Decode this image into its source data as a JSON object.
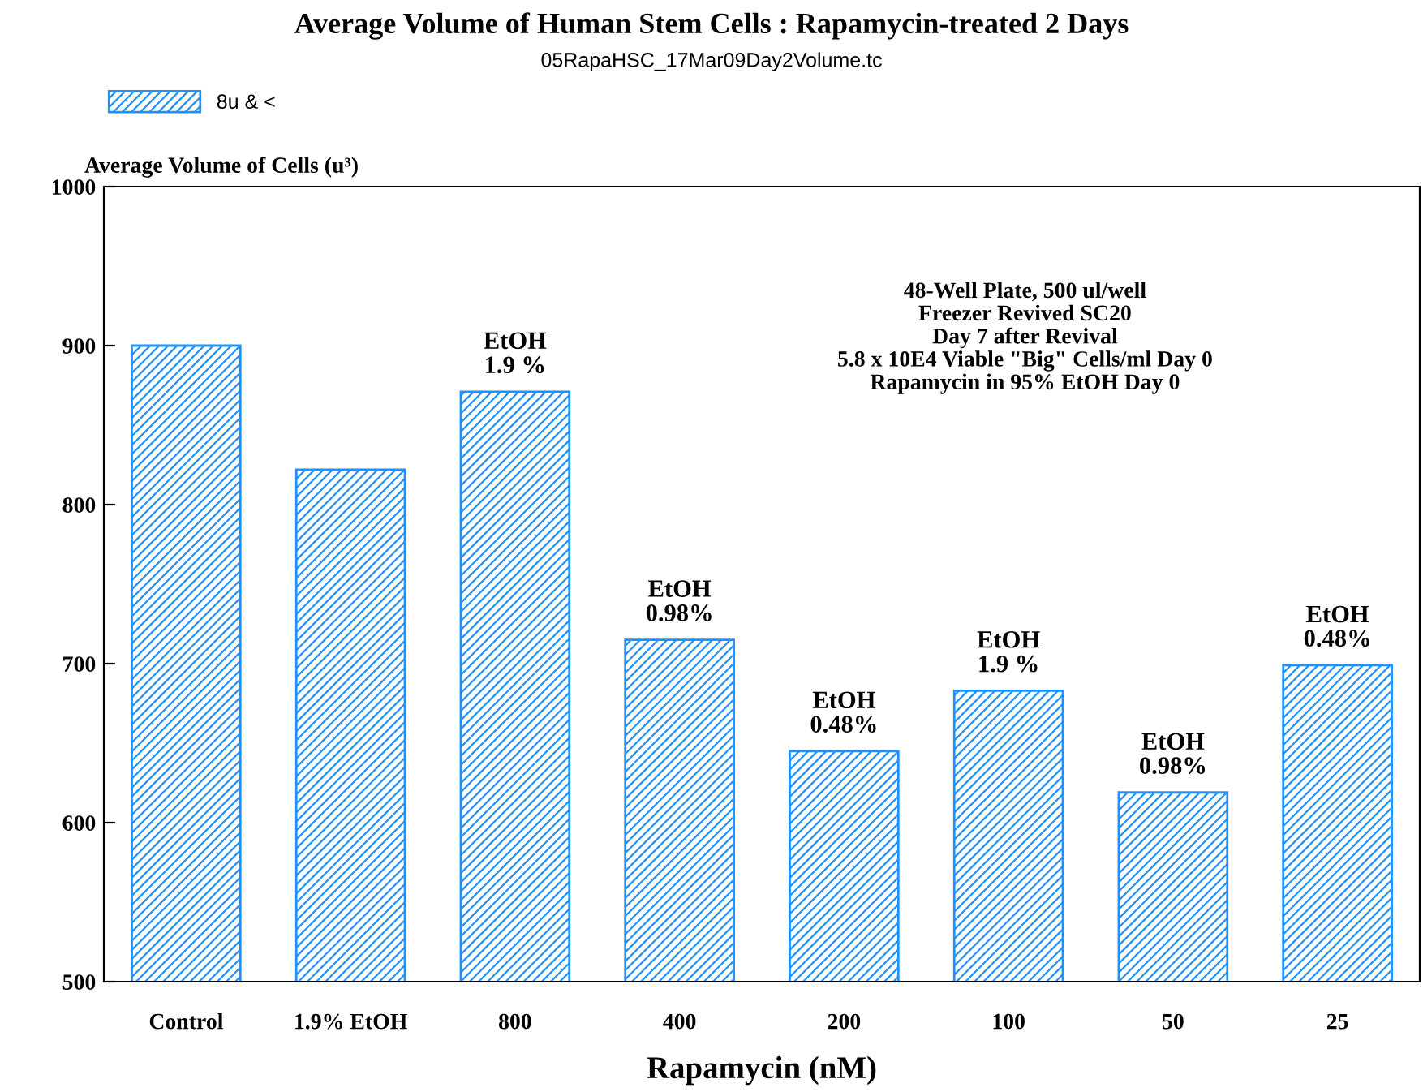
{
  "chart_data": {
    "type": "bar",
    "title": "Average Volume of Human Stem Cells : Rapamycin-treated 2 Days",
    "subtitle": "05RapaHSC_17Mar09Day2Volume.tc",
    "xlabel": "Rapamycin (nM)",
    "ylabel": "Average Volume of Cells (u³)",
    "categories": [
      "Control",
      "1.9% EtOH",
      "800",
      "400",
      "200",
      "100",
      "50",
      "25"
    ],
    "series": [
      {
        "name": "8u & <",
        "color": "#1e90ff",
        "values": [
          900,
          822,
          871,
          715,
          645,
          683,
          619,
          699
        ]
      }
    ],
    "ylim": [
      500,
      1000
    ],
    "yticks": [
      500,
      600,
      700,
      800,
      900,
      1000
    ],
    "grid": false,
    "legend": "top left",
    "annotations": [
      {
        "text": "EtOH\n1.9 %",
        "x": "800",
        "y": 871
      },
      {
        "text": "EtOH\n0.98%",
        "x": "400",
        "y": 715
      },
      {
        "text": "EtOH\n0.48%",
        "x": "200",
        "y": 645
      },
      {
        "text": "EtOH\n1.9 %",
        "x": "100",
        "y": 683
      },
      {
        "text": "EtOH\n0.98%",
        "x": "50",
        "y": 619
      },
      {
        "text": "EtOH\n0.48%",
        "x": "25",
        "y": 699
      },
      "48-Well Plate, 500 ul/well\nFreezer Revived SC20\nDay 7 after Revival\n5.8 x 10E4 Viable \"Big\" Cells/ml Day 0\nRapamycin in 95% EtOH Day 0"
    ]
  }
}
